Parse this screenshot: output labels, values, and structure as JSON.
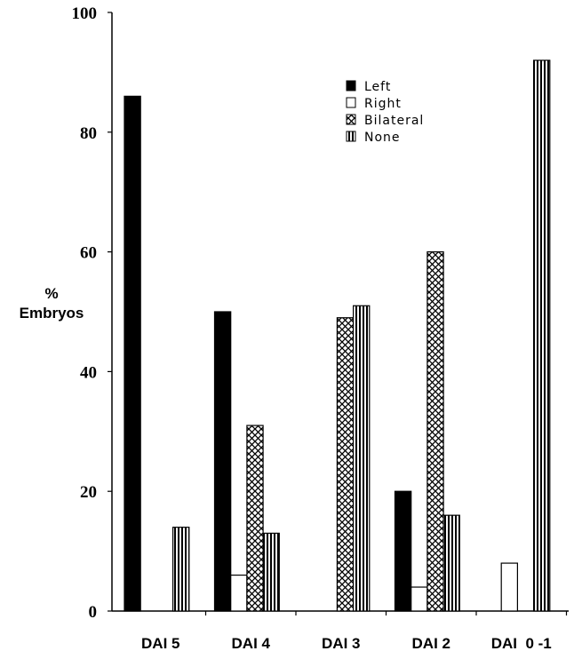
{
  "chart_data": {
    "type": "bar",
    "title": "",
    "xlabel": "",
    "ylabel": [
      "%",
      "Embryos"
    ],
    "ylim": [
      0,
      100
    ],
    "yticks": [
      0,
      20,
      40,
      60,
      80,
      100
    ],
    "grid": false,
    "legend_position": "top-right",
    "categories": [
      "DAI 5",
      "DAI 4",
      "DAI 3",
      "DAI 2",
      "DAI  0 -1"
    ],
    "series": [
      {
        "name": "Left",
        "pattern": "solid-black",
        "values": [
          86,
          50,
          0,
          20,
          0
        ]
      },
      {
        "name": "Right",
        "pattern": "white",
        "values": [
          0,
          6,
          0,
          4,
          8
        ]
      },
      {
        "name": "Bilateral",
        "pattern": "crosshatch",
        "values": [
          0,
          31,
          49,
          60,
          0
        ]
      },
      {
        "name": "None",
        "pattern": "vertical-stripes",
        "values": [
          14,
          13,
          51,
          16,
          92
        ]
      }
    ]
  }
}
